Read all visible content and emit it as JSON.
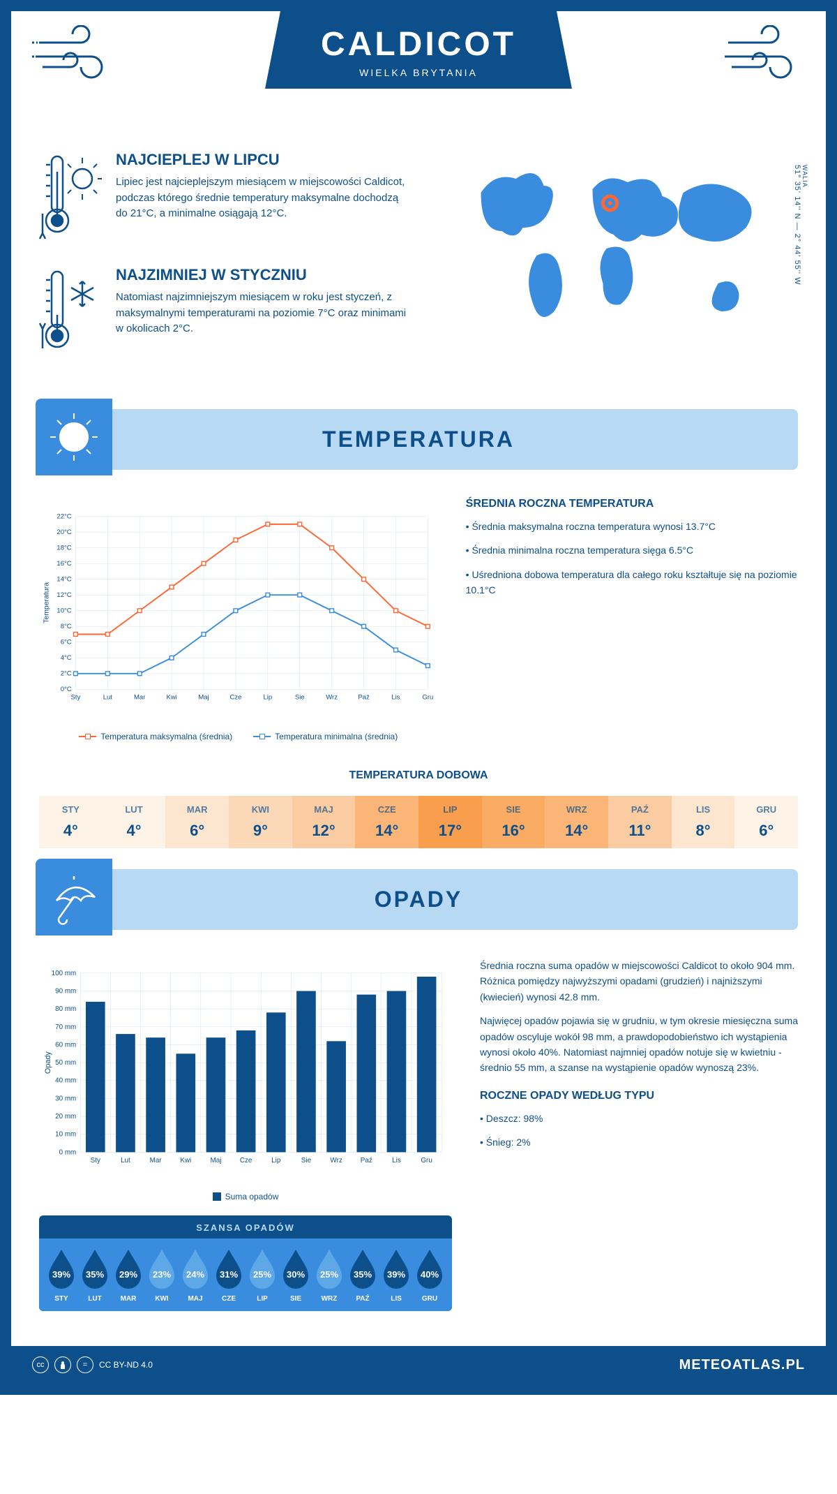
{
  "header": {
    "title": "CALDICOT",
    "subtitle": "WIELKA BRYTANIA"
  },
  "map": {
    "region": "WALIA",
    "coords": "51° 35' 14'' N — 2° 44' 55'' W",
    "marker_color": "#ff6633",
    "land_color": "#3a8dde"
  },
  "facts": {
    "hot": {
      "title": "NAJCIEPLEJ W LIPCU",
      "text": "Lipiec jest najcieplejszym miesiącem w miejscowości Caldicot, podczas którego średnie temperatury maksymalne dochodzą do 21°C, a minimalne osiągają 12°C."
    },
    "cold": {
      "title": "NAJZIMNIEJ W STYCZNIU",
      "text": "Natomiast najzimniejszym miesiącem w roku jest styczeń, z maksymalnymi temperaturami na poziomie 7°C oraz minimami w okolicach 2°C."
    }
  },
  "temp_section": {
    "heading": "TEMPERATURA",
    "side_title": "ŚREDNIA ROCZNA TEMPERATURA",
    "side_points": [
      "Średnia maksymalna roczna temperatura wynosi 13.7°C",
      "Średnia minimalna roczna temperatura sięga 6.5°C",
      "Uśredniona dobowa temperatura dla całego roku kształtuje się na poziomie 10.1°C"
    ],
    "chart": {
      "type": "line",
      "months": [
        "Sty",
        "Lut",
        "Mar",
        "Kwi",
        "Maj",
        "Cze",
        "Lip",
        "Sie",
        "Wrz",
        "Paź",
        "Lis",
        "Gru"
      ],
      "y_label": "Temperatura",
      "ymin": 0,
      "ymax": 22,
      "ystep": 2,
      "y_suffix": "°C",
      "grid_color": "#cde3f5",
      "series": [
        {
          "name": "Temperatura maksymalna (średnia)",
          "color": "#ff6633",
          "values": [
            7,
            7,
            10,
            13,
            16,
            19,
            21,
            21,
            18,
            14,
            10,
            8
          ]
        },
        {
          "name": "Temperatura minimalna (średnia)",
          "color": "#3a8dde",
          "values": [
            2,
            2,
            2,
            4,
            7,
            10,
            12,
            12,
            10,
            8,
            5,
            3
          ]
        }
      ]
    },
    "daily": {
      "title": "TEMPERATURA DOBOWA",
      "months": [
        "STY",
        "LUT",
        "MAR",
        "KWI",
        "MAJ",
        "CZE",
        "LIP",
        "SIE",
        "WRZ",
        "PAŹ",
        "LIS",
        "GRU"
      ],
      "values": [
        "4°",
        "4°",
        "6°",
        "9°",
        "12°",
        "14°",
        "17°",
        "16°",
        "14°",
        "11°",
        "8°",
        "6°"
      ],
      "colors": [
        "#fdf3e6",
        "#fdf3e6",
        "#fce6cf",
        "#fbd9b8",
        "#fbcca1",
        "#fab577",
        "#f89e4d",
        "#f9ab63",
        "#fab577",
        "#fbcca1",
        "#fce6cf",
        "#fdf3e6"
      ]
    }
  },
  "rain_section": {
    "heading": "OPADY",
    "para1": "Średnia roczna suma opadów w miejscowości Caldicot to około 904 mm. Różnica pomiędzy najwyższymi opadami (grudzień) i najniższymi (kwiecień) wynosi 42.8 mm.",
    "para2": "Najwięcej opadów pojawia się w grudniu, w tym okresie miesięczna suma opadów oscyluje wokół 98 mm, a prawdopodobieństwo ich wystąpienia wynosi około 40%. Natomiast najmniej opadów notuje się w kwietniu - średnio 55 mm, a szanse na wystąpienie opadów wynoszą 23%.",
    "type_title": "ROCZNE OPADY WEDŁUG TYPU",
    "type_points": [
      "Deszcz: 98%",
      "Śnieg: 2%"
    ],
    "chart": {
      "type": "bar",
      "months": [
        "Sty",
        "Lut",
        "Mar",
        "Kwi",
        "Maj",
        "Cze",
        "Lip",
        "Sie",
        "Wrz",
        "Paź",
        "Lis",
        "Gru"
      ],
      "y_label": "Opady",
      "ymin": 0,
      "ymax": 100,
      "ystep": 10,
      "y_suffix": " mm",
      "bar_color": "#0d4f8b",
      "grid_color": "#cde3f5",
      "legend": "Suma opadów",
      "values": [
        84,
        66,
        64,
        55,
        64,
        68,
        78,
        90,
        62,
        88,
        90,
        98
      ]
    },
    "chance": {
      "title": "SZANSA OPADÓW",
      "months": [
        "STY",
        "LUT",
        "MAR",
        "KWI",
        "MAJ",
        "CZE",
        "LIP",
        "SIE",
        "WRZ",
        "PAŹ",
        "LIS",
        "GRU"
      ],
      "pct": [
        39,
        35,
        29,
        23,
        24,
        31,
        25,
        30,
        25,
        35,
        39,
        40
      ],
      "drop_fill": "#0d4f8b",
      "drop_fill_low": "#5fa8e8"
    }
  },
  "footer": {
    "license": "CC BY-ND 4.0",
    "brand": "METEOATLAS.PL"
  },
  "palette": {
    "primary": "#0d4f8b",
    "light": "#b8d9f4",
    "mid": "#3a8dde",
    "accent": "#ff6633"
  }
}
